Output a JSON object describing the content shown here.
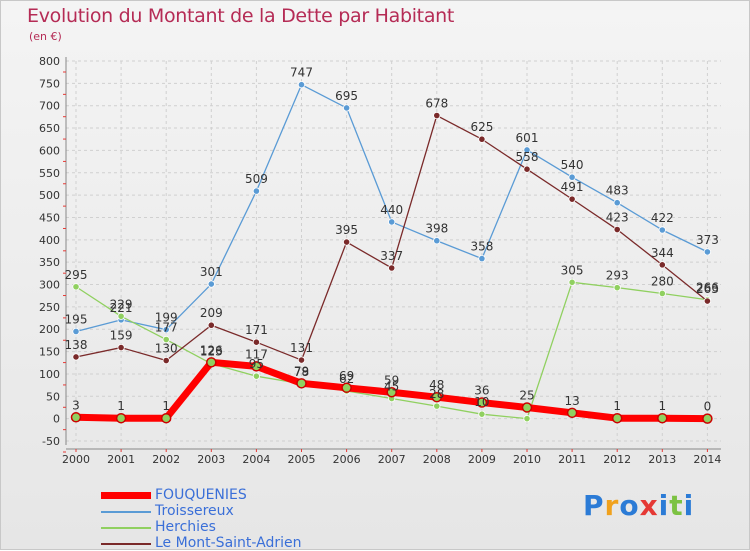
{
  "header": {
    "title": "Evolution du Montant de la Dette par Habitant",
    "subtitle": "(en €)"
  },
  "logo": {
    "text": "Proxiti",
    "colors": [
      "#2b7bd6",
      "#f0a11d",
      "#2b7bd6",
      "#e53935",
      "#2b7bd6",
      "#7cc242",
      "#2b7bd6"
    ]
  },
  "chart_data": {
    "type": "line",
    "title": "Evolution du Montant de la Dette par Habitant",
    "subtitle": "(en €)",
    "xlabel": "",
    "ylabel": "",
    "x": [
      "2000",
      "2001",
      "2002",
      "2003",
      "2004",
      "2005",
      "2006",
      "2007",
      "2008",
      "2009",
      "2010",
      "2011",
      "2012",
      "2013",
      "2014"
    ],
    "ylim": [
      -50,
      800
    ],
    "yticks": [
      -50,
      0,
      50,
      100,
      150,
      200,
      250,
      300,
      350,
      400,
      450,
      500,
      550,
      600,
      650,
      700,
      750,
      800
    ],
    "grid": true,
    "legend_position": "bottom-left",
    "series": [
      {
        "name": "FOUQUENIES",
        "color": "#ff0000",
        "width": 7,
        "values": [
          3,
          1,
          1,
          126,
          117,
          79,
          69,
          59,
          48,
          36,
          25,
          13,
          1,
          1,
          0
        ],
        "labels": [
          "3",
          "1",
          "1",
          "126",
          "117",
          "79",
          "69",
          "59",
          "48",
          "36",
          "25",
          "13",
          "1",
          "1",
          "0"
        ]
      },
      {
        "name": "Troissereux",
        "color": "#5a9bd5",
        "width": 1.3,
        "values": [
          195,
          221,
          199,
          301,
          509,
          747,
          695,
          440,
          398,
          358,
          601,
          540,
          483,
          422,
          373
        ],
        "labels": [
          "195",
          "221",
          "199",
          "301",
          "509",
          "747",
          "695",
          "440",
          "398",
          "358",
          "601",
          "540",
          "483",
          "422",
          "373"
        ]
      },
      {
        "name": "Herchies",
        "color": "#90d060",
        "width": 1.3,
        "values": [
          295,
          229,
          177,
          123,
          95,
          78,
          62,
          45,
          28,
          10,
          0,
          305,
          293,
          280,
          266
        ],
        "labels": [
          "295",
          "229",
          "177",
          "123",
          "95",
          "78",
          "62",
          "45",
          "28",
          "10",
          "",
          "305",
          "293",
          "280",
          "266"
        ]
      },
      {
        "name": "Le Mont-Saint-Adrien",
        "color": "#7a2a2a",
        "width": 1.3,
        "values": [
          138,
          159,
          130,
          209,
          171,
          131,
          395,
          337,
          678,
          625,
          558,
          491,
          423,
          344,
          263
        ],
        "labels": [
          "138",
          "159",
          "130",
          "209",
          "171",
          "131",
          "395",
          "337",
          "678",
          "625",
          "558",
          "491",
          "423",
          "344",
          "263"
        ]
      }
    ]
  }
}
